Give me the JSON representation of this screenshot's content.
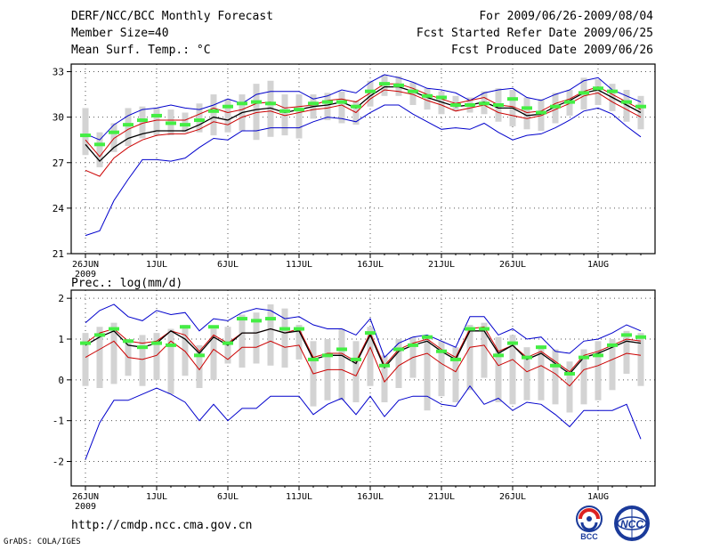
{
  "header": {
    "title": "DERF/NCC/BCC Monthly Forecast",
    "member_size": "Member Size=40",
    "variable": "Mean Surf. Temp.: °C",
    "forecast_period": "For 2009/06/26-2009/08/04",
    "started_refer_date": "Fcst Started Refer Date 2009/06/25",
    "produced_date": "Fcst Produced Date 2009/06/26"
  },
  "footer": {
    "url": "http://cmdp.ncc.cma.gov.cn",
    "credit": "GrADS: COLA/IGES",
    "logo_left_text": "BCC",
    "logo_right_text": "NCC"
  },
  "colors": {
    "min_max": "#0000cc",
    "mean": "#000000",
    "inner": "#cc0000",
    "observed_marker": "#44ee44",
    "spread_box": "#d3d3d3",
    "grid": "#555555"
  },
  "chart_data": [
    {
      "type": "line",
      "title": "Mean Surf. Temp.: °C",
      "x_tick_labels": [
        "26JUN",
        "1JUL",
        "6JUL",
        "11JUL",
        "16JUL",
        "21JUL",
        "26JUL",
        "1AUG"
      ],
      "x_tick_day_index": [
        0,
        5,
        10,
        15,
        20,
        25,
        30,
        36
      ],
      "x_sublabel": "2009",
      "ylim": [
        21,
        33.5
      ],
      "y_ticks": [
        21,
        24,
        27,
        30,
        33
      ],
      "days": 40,
      "series": [
        {
          "name": "max",
          "values": [
            28.9,
            28.5,
            29.5,
            30.1,
            30.5,
            30.6,
            30.8,
            30.6,
            30.5,
            30.8,
            31.2,
            30.9,
            31.5,
            31.7,
            31.7,
            31.7,
            31.2,
            31.4,
            31.8,
            31.6,
            32.3,
            32.8,
            32.6,
            32.3,
            31.9,
            31.8,
            31.6,
            31.1,
            31.6,
            31.8,
            31.9,
            31.3,
            31.1,
            31.5,
            31.8,
            32.4,
            32.6,
            31.8,
            31.4,
            31.0
          ]
        },
        {
          "name": "upper",
          "values": [
            28.5,
            27.4,
            28.6,
            29.2,
            29.6,
            29.8,
            29.8,
            29.8,
            30.2,
            30.6,
            30.3,
            30.5,
            30.9,
            31.0,
            30.6,
            30.7,
            30.8,
            31.1,
            31.2,
            31.0,
            31.6,
            32.2,
            32.2,
            31.9,
            31.5,
            31.2,
            30.9,
            31.1,
            31.3,
            30.8,
            30.7,
            30.3,
            30.4,
            30.9,
            31.2,
            31.7,
            32.0,
            31.5,
            31.0,
            30.5
          ]
        },
        {
          "name": "mean",
          "values": [
            28.2,
            27.1,
            28.0,
            28.6,
            28.9,
            29.1,
            29.1,
            29.1,
            29.5,
            30.0,
            29.8,
            30.3,
            30.5,
            30.6,
            30.3,
            30.5,
            30.7,
            30.8,
            31.0,
            30.6,
            31.4,
            32.0,
            32.0,
            31.7,
            31.3,
            31.0,
            30.7,
            30.8,
            31.0,
            30.6,
            30.6,
            30.1,
            30.2,
            30.7,
            31.1,
            31.6,
            31.8,
            31.3,
            30.8,
            30.3
          ]
        },
        {
          "name": "lower",
          "values": [
            26.5,
            26.1,
            27.3,
            28.0,
            28.5,
            28.8,
            28.9,
            28.9,
            29.2,
            29.7,
            29.5,
            30.0,
            30.3,
            30.4,
            30.1,
            30.3,
            30.5,
            30.6,
            30.8,
            30.3,
            31.2,
            31.8,
            31.7,
            31.5,
            31.1,
            30.8,
            30.4,
            30.6,
            30.8,
            30.3,
            30.1,
            29.9,
            30.1,
            30.5,
            30.9,
            31.4,
            31.6,
            31.0,
            30.5,
            30.0
          ]
        },
        {
          "name": "min",
          "values": [
            22.2,
            22.5,
            24.5,
            25.9,
            27.2,
            27.2,
            27.1,
            27.3,
            28.0,
            28.6,
            28.5,
            29.1,
            29.1,
            29.3,
            29.3,
            29.3,
            29.7,
            30.0,
            29.9,
            29.7,
            30.3,
            30.8,
            30.8,
            30.2,
            29.7,
            29.2,
            29.3,
            29.2,
            29.6,
            29.0,
            28.5,
            28.8,
            28.9,
            29.3,
            29.8,
            30.4,
            30.6,
            30.2,
            29.4,
            28.7
          ]
        },
        {
          "name": "observed",
          "values": [
            28.8,
            28.2,
            29.0,
            29.5,
            29.8,
            30.1,
            29.6,
            29.5,
            29.8,
            30.4,
            30.7,
            30.9,
            31.0,
            30.9,
            30.4,
            30.5,
            30.9,
            31.0,
            31.0,
            30.7,
            31.7,
            32.2,
            32.1,
            31.7,
            31.4,
            31.3,
            30.8,
            30.8,
            30.9,
            30.8,
            31.2,
            30.6,
            30.3,
            30.7,
            31.0,
            31.6,
            31.9,
            31.7,
            31.0,
            30.7
          ]
        },
        {
          "name": "spread_top",
          "values": [
            30.6,
            29.0,
            29.6,
            30.6,
            30.7,
            30.6,
            30.5,
            30.3,
            30.9,
            31.5,
            31.2,
            31.5,
            32.2,
            32.4,
            31.5,
            31.5,
            31.5,
            31.6,
            31.7,
            31.1,
            32.4,
            32.8,
            32.7,
            32.3,
            31.9,
            31.7,
            31.4,
            31.3,
            31.7,
            31.9,
            31.8,
            31.3,
            31.2,
            31.6,
            31.8,
            32.6,
            32.5,
            32.2,
            31.8,
            31.4
          ]
        },
        {
          "name": "spread_bottom",
          "values": [
            27.5,
            26.7,
            27.7,
            28.1,
            28.6,
            28.8,
            28.8,
            29.0,
            29.0,
            28.8,
            29.0,
            29.1,
            28.5,
            28.7,
            28.8,
            28.6,
            29.9,
            29.8,
            29.6,
            29.5,
            30.7,
            31.4,
            31.4,
            30.8,
            30.5,
            30.2,
            30.4,
            30.3,
            30.2,
            29.7,
            29.4,
            29.2,
            29.1,
            29.6,
            30.1,
            30.5,
            30.8,
            30.4,
            29.7,
            29.2
          ]
        }
      ]
    },
    {
      "type": "line",
      "title": "Prec.: log(mm/d)",
      "x_tick_labels": [
        "26JUN",
        "1JUL",
        "6JUL",
        "11JUL",
        "16JUL",
        "21JUL",
        "26JUL",
        "1AUG"
      ],
      "x_tick_day_index": [
        0,
        5,
        10,
        15,
        20,
        25,
        30,
        36
      ],
      "x_sublabel": "2009",
      "ylim": [
        -2.6,
        2.2
      ],
      "y_ticks": [
        -2,
        -1,
        0,
        1,
        2
      ],
      "days": 40,
      "series": [
        {
          "name": "max",
          "values": [
            1.4,
            1.7,
            1.85,
            1.55,
            1.45,
            1.7,
            1.6,
            1.65,
            1.2,
            1.5,
            1.45,
            1.65,
            1.75,
            1.7,
            1.5,
            1.55,
            1.35,
            1.25,
            1.25,
            1.1,
            1.5,
            0.55,
            0.9,
            1.05,
            1.1,
            0.95,
            0.8,
            1.55,
            1.55,
            1.1,
            1.25,
            1.0,
            1.05,
            0.7,
            0.65,
            0.95,
            1.0,
            1.15,
            1.35,
            1.2
          ]
        },
        {
          "name": "upper",
          "values": [
            0.9,
            1.15,
            1.25,
            0.95,
            0.9,
            0.95,
            1.2,
            1.1,
            0.7,
            1.1,
            0.9,
            1.15,
            1.15,
            1.25,
            1.15,
            1.25,
            0.55,
            0.65,
            0.65,
            0.45,
            1.15,
            0.35,
            0.75,
            0.9,
            1.0,
            0.75,
            0.55,
            1.25,
            1.3,
            0.7,
            0.85,
            0.55,
            0.7,
            0.45,
            0.2,
            0.6,
            0.7,
            0.85,
            1.0,
            0.95
          ]
        },
        {
          "name": "mean",
          "values": [
            0.85,
            1.05,
            1.2,
            0.85,
            0.8,
            0.9,
            1.2,
            1.0,
            0.65,
            1.05,
            0.85,
            1.15,
            1.15,
            1.25,
            1.15,
            1.2,
            0.5,
            0.6,
            0.6,
            0.4,
            1.1,
            0.3,
            0.7,
            0.85,
            0.95,
            0.7,
            0.5,
            1.2,
            1.2,
            0.65,
            0.85,
            0.5,
            0.65,
            0.4,
            0.15,
            0.55,
            0.65,
            0.8,
            0.95,
            0.9
          ]
        },
        {
          "name": "lower",
          "values": [
            0.55,
            0.75,
            0.95,
            0.55,
            0.5,
            0.6,
            0.95,
            0.7,
            0.25,
            0.75,
            0.5,
            0.8,
            0.8,
            0.95,
            0.8,
            0.85,
            0.15,
            0.25,
            0.25,
            0.1,
            0.8,
            -0.05,
            0.35,
            0.55,
            0.65,
            0.4,
            0.2,
            0.8,
            0.85,
            0.35,
            0.5,
            0.2,
            0.35,
            0.15,
            -0.15,
            0.25,
            0.35,
            0.5,
            0.65,
            0.6
          ]
        },
        {
          "name": "min",
          "values": [
            -1.95,
            -1.05,
            -0.5,
            -0.5,
            -0.35,
            -0.2,
            -0.35,
            -0.55,
            -1.0,
            -0.6,
            -1.0,
            -0.7,
            -0.7,
            -0.4,
            -0.4,
            -0.4,
            -0.85,
            -0.6,
            -0.45,
            -0.85,
            -0.4,
            -0.9,
            -0.5,
            -0.4,
            -0.4,
            -0.6,
            -0.65,
            -0.15,
            -0.6,
            -0.45,
            -0.75,
            -0.55,
            -0.6,
            -0.85,
            -1.15,
            -0.75,
            -0.75,
            -0.75,
            -0.6,
            -1.45
          ]
        },
        {
          "name": "observed",
          "values": [
            0.9,
            1.1,
            1.25,
            0.95,
            0.8,
            0.9,
            0.85,
            1.3,
            0.6,
            1.3,
            0.9,
            1.5,
            1.45,
            1.5,
            1.25,
            1.25,
            0.5,
            0.6,
            0.75,
            0.5,
            1.15,
            0.35,
            0.75,
            0.85,
            1.05,
            0.7,
            0.5,
            1.25,
            1.25,
            0.6,
            0.9,
            0.55,
            0.8,
            0.35,
            0.15,
            0.55,
            0.6,
            0.85,
            1.1,
            1.05
          ]
        },
        {
          "name": "spread_top",
          "values": [
            1.15,
            1.3,
            1.4,
            1.0,
            1.1,
            1.15,
            1.25,
            1.35,
            0.85,
            1.25,
            1.3,
            1.6,
            1.65,
            1.85,
            1.75,
            1.35,
            0.95,
            1.0,
            1.25,
            0.95,
            1.3,
            0.6,
            1.0,
            1.05,
            1.05,
            0.95,
            0.8,
            1.35,
            1.4,
            1.05,
            1.1,
            0.8,
            0.85,
            0.75,
            0.45,
            0.75,
            0.95,
            1.0,
            1.2,
            1.15
          ]
        },
        {
          "name": "spread_bottom",
          "values": [
            -0.15,
            -0.2,
            -0.1,
            0.1,
            -0.15,
            0.0,
            -0.35,
            0.1,
            -0.2,
            0.0,
            0.4,
            0.3,
            0.4,
            0.35,
            0.3,
            0.5,
            -0.65,
            -0.5,
            -0.5,
            -0.55,
            -0.15,
            -0.55,
            -0.2,
            0.05,
            -0.75,
            -0.4,
            -0.55,
            -0.25,
            0.05,
            -0.55,
            -0.6,
            -0.5,
            -0.5,
            -0.6,
            -0.8,
            -0.6,
            -0.5,
            -0.25,
            0.15,
            -0.15
          ]
        }
      ]
    }
  ]
}
